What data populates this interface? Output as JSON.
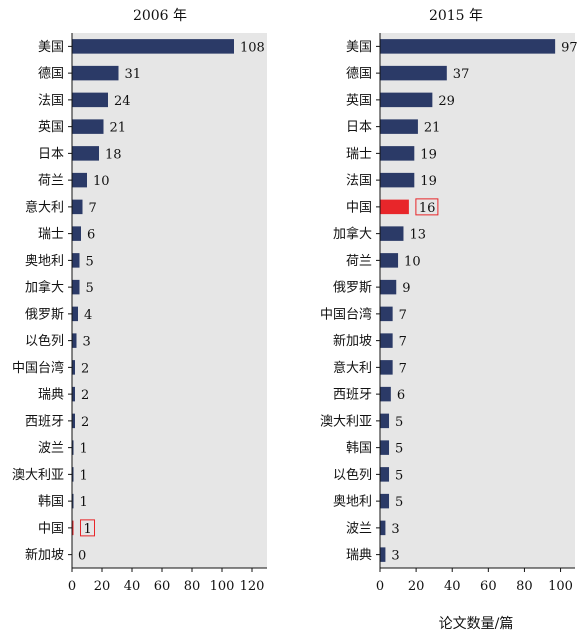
{
  "chart_data": [
    {
      "type": "bar",
      "orientation": "horizontal",
      "title": "2006 年",
      "categories": [
        "美国",
        "德国",
        "法国",
        "英国",
        "日本",
        "荷兰",
        "意大利",
        "瑞士",
        "奥地利",
        "加拿大",
        "俄罗斯",
        "以色列",
        "中国台湾",
        "瑞典",
        "西班牙",
        "波兰",
        "澳大利亚",
        "韩国",
        "中国",
        "新加坡"
      ],
      "values": [
        108,
        31,
        24,
        21,
        18,
        10,
        7,
        6,
        5,
        5,
        4,
        3,
        2,
        2,
        2,
        1,
        1,
        1,
        1,
        0
      ],
      "highlight": "中国",
      "xlim": [
        0,
        130
      ],
      "xticks": [
        "0",
        "20",
        "40",
        "60",
        "80",
        "100",
        "120"
      ],
      "grid": false,
      "bar_color": "#2b3a67",
      "highlight_color": "#e8262a",
      "background": "#e6e6e6"
    },
    {
      "type": "bar",
      "orientation": "horizontal",
      "title": "2015 年",
      "categories": [
        "美国",
        "德国",
        "英国",
        "日本",
        "瑞士",
        "法国",
        "中国",
        "加拿大",
        "荷兰",
        "俄罗斯",
        "中国台湾",
        "新加坡",
        "意大利",
        "西班牙",
        "澳大利亚",
        "韩国",
        "以色列",
        "奥地利",
        "波兰",
        "瑞典"
      ],
      "values": [
        97,
        37,
        29,
        21,
        19,
        19,
        16,
        13,
        10,
        9,
        7,
        7,
        7,
        6,
        5,
        5,
        5,
        5,
        3,
        3
      ],
      "highlight": "中国",
      "xlim": [
        0,
        108
      ],
      "xticks": [
        "0",
        "20",
        "40",
        "60",
        "80",
        "100"
      ],
      "grid": false,
      "bar_color": "#2b3a67",
      "highlight_color": "#e8262a",
      "background": "#e6e6e6"
    }
  ],
  "xlabel": "论文数量/篇"
}
